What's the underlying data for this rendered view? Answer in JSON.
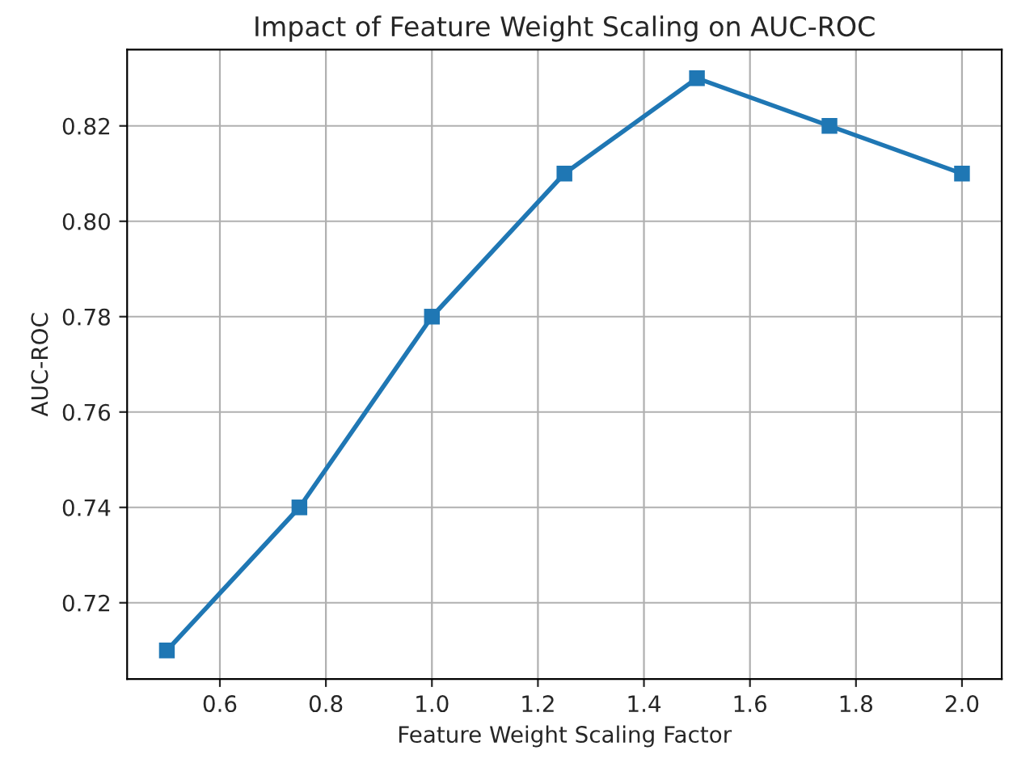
{
  "chart_data": {
    "type": "line",
    "title": "Impact of Feature Weight Scaling on AUC-ROC",
    "xlabel": "Feature Weight Scaling Factor",
    "ylabel": "AUC-ROC",
    "x": [
      0.5,
      0.75,
      1.0,
      1.25,
      1.5,
      1.75,
      2.0
    ],
    "series": [
      {
        "color": "#1f77b4",
        "values": [
          0.71,
          0.74,
          0.78,
          0.81,
          0.83,
          0.82,
          0.81
        ]
      }
    ],
    "xlim": [
      0.425,
      2.075
    ],
    "ylim": [
      0.704,
      0.836
    ],
    "xticks": [
      {
        "value": 0.6,
        "label": "0.6"
      },
      {
        "value": 0.8,
        "label": "0.8"
      },
      {
        "value": 1.0,
        "label": "1.0"
      },
      {
        "value": 1.2,
        "label": "1.2"
      },
      {
        "value": 1.4,
        "label": "1.4"
      },
      {
        "value": 1.6,
        "label": "1.6"
      },
      {
        "value": 1.8,
        "label": "1.8"
      },
      {
        "value": 2.0,
        "label": "2.0"
      }
    ],
    "yticks": [
      {
        "value": 0.72,
        "label": "0.72"
      },
      {
        "value": 0.74,
        "label": "0.74"
      },
      {
        "value": 0.76,
        "label": "0.76"
      },
      {
        "value": 0.78,
        "label": "0.78"
      },
      {
        "value": 0.8,
        "label": "0.80"
      },
      {
        "value": 0.82,
        "label": "0.82"
      }
    ],
    "grid": true,
    "marker": "square",
    "line_style": "solid"
  }
}
